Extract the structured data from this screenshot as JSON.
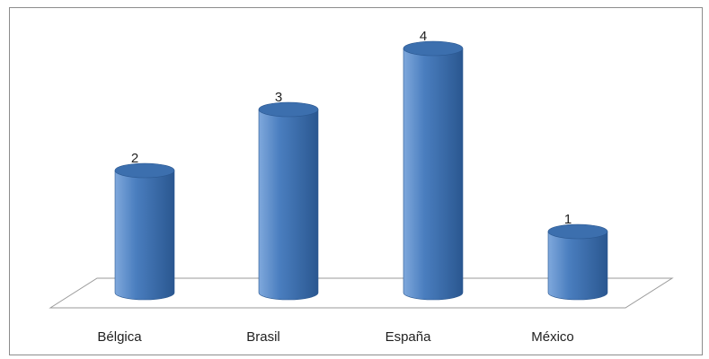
{
  "chart_data": {
    "type": "bar",
    "style": "3d-cylinder",
    "categories": [
      "Bélgica",
      "Brasil",
      "España",
      "México"
    ],
    "values": [
      2,
      3,
      4,
      1
    ],
    "data_labels": [
      "2",
      "3",
      "4",
      "1"
    ],
    "title": "",
    "xlabel": "",
    "ylabel": "",
    "ylim": [
      0,
      4
    ],
    "grid": false,
    "legend": "none",
    "colors": {
      "bar": "#4a7ebf",
      "bar_light": "#7fa8dc",
      "bar_dark": "#2a5790",
      "bar_top": "#3c6fae",
      "floor_stroke": "#9a9a9a",
      "frame": "#8c8c8c"
    }
  }
}
